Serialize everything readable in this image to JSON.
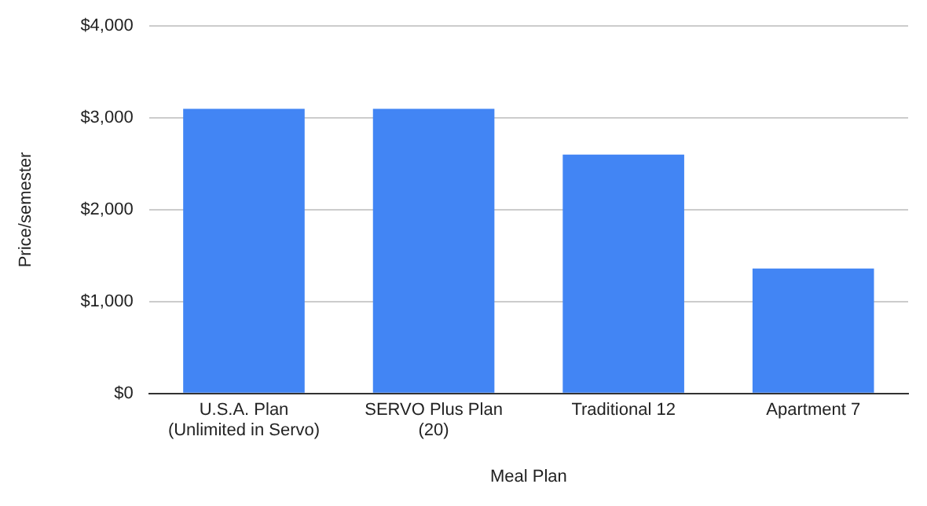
{
  "chart_data": {
    "type": "bar",
    "xlabel": "Meal Plan",
    "ylabel": "Price/semester",
    "categories": [
      "U.S.A. Plan\n(Unlimited in Servo)",
      "SERVO Plus Plan\n(20)",
      "Traditional 12",
      "Apartment 7"
    ],
    "values": [
      3100,
      3100,
      2600,
      1360
    ],
    "color": "#4285f4",
    "ylim": [
      0,
      4000
    ],
    "yticks": [
      {
        "value": 0,
        "label": "$0"
      },
      {
        "value": 1000,
        "label": "$1,000"
      },
      {
        "value": 2000,
        "label": "$2,000"
      },
      {
        "value": 3000,
        "label": "$3,000"
      },
      {
        "value": 4000,
        "label": "$4,000"
      }
    ],
    "grid": "y",
    "legend": false
  }
}
